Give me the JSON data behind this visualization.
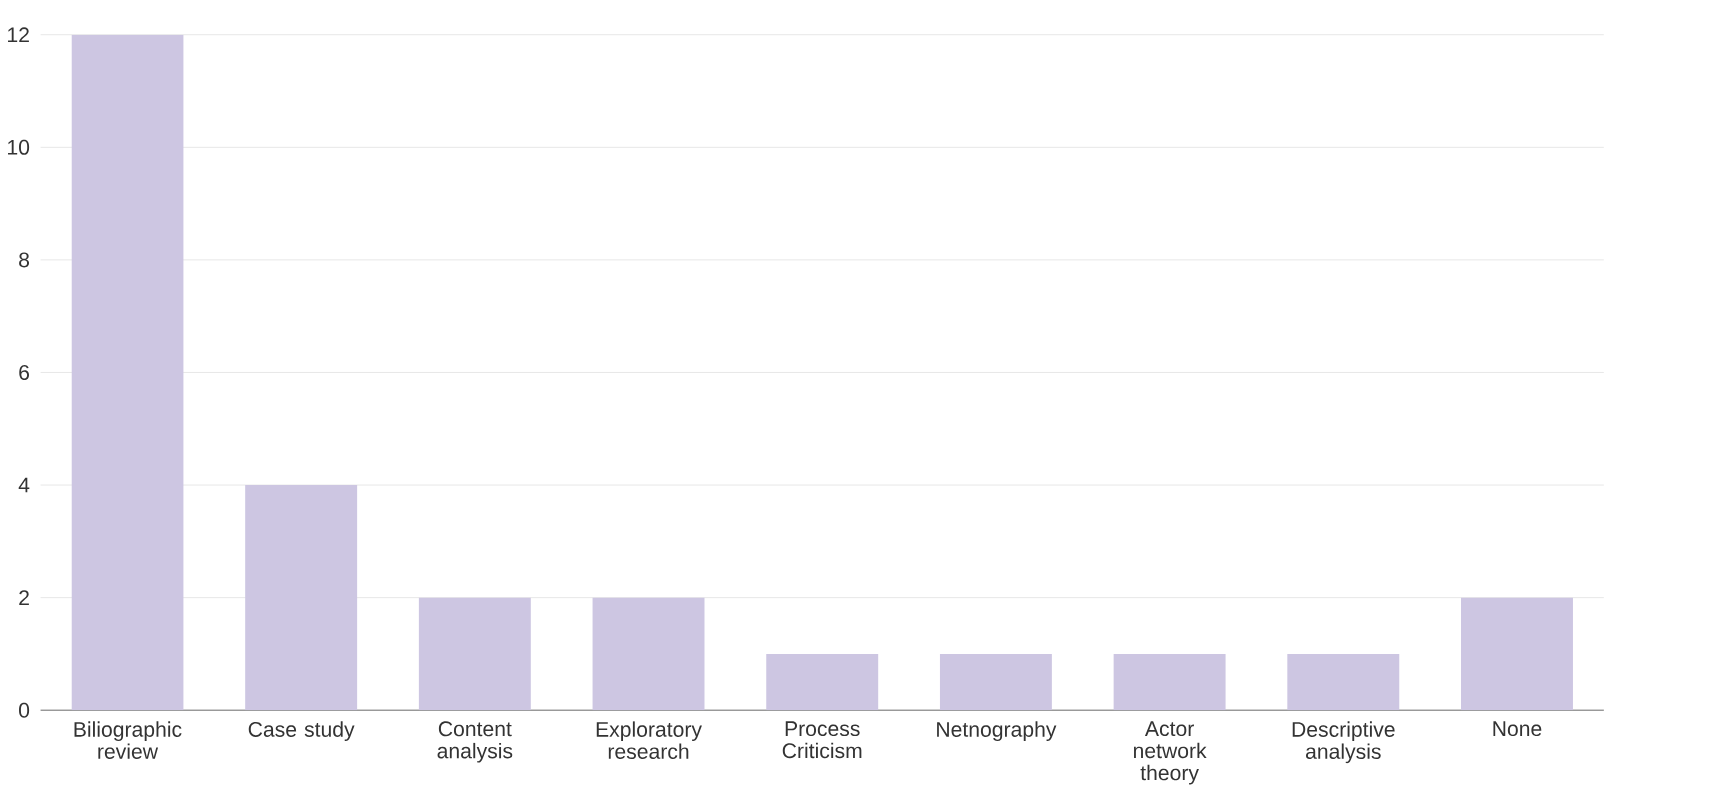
{
  "chart_data": {
    "type": "bar",
    "categories": [
      "Biliographic review",
      "Case study",
      "Content analysis",
      "Exploratory research",
      "Process Criticism",
      "Netnography",
      "Actor network theory",
      "Descriptive analysis",
      "None"
    ],
    "values": [
      12,
      4,
      2,
      2,
      1,
      1,
      1,
      1,
      2
    ],
    "color": "#cdc6e2",
    "ylim": [
      0,
      12
    ],
    "yticks": [
      0,
      2,
      4,
      6,
      8,
      10,
      12
    ],
    "grid": "y"
  }
}
